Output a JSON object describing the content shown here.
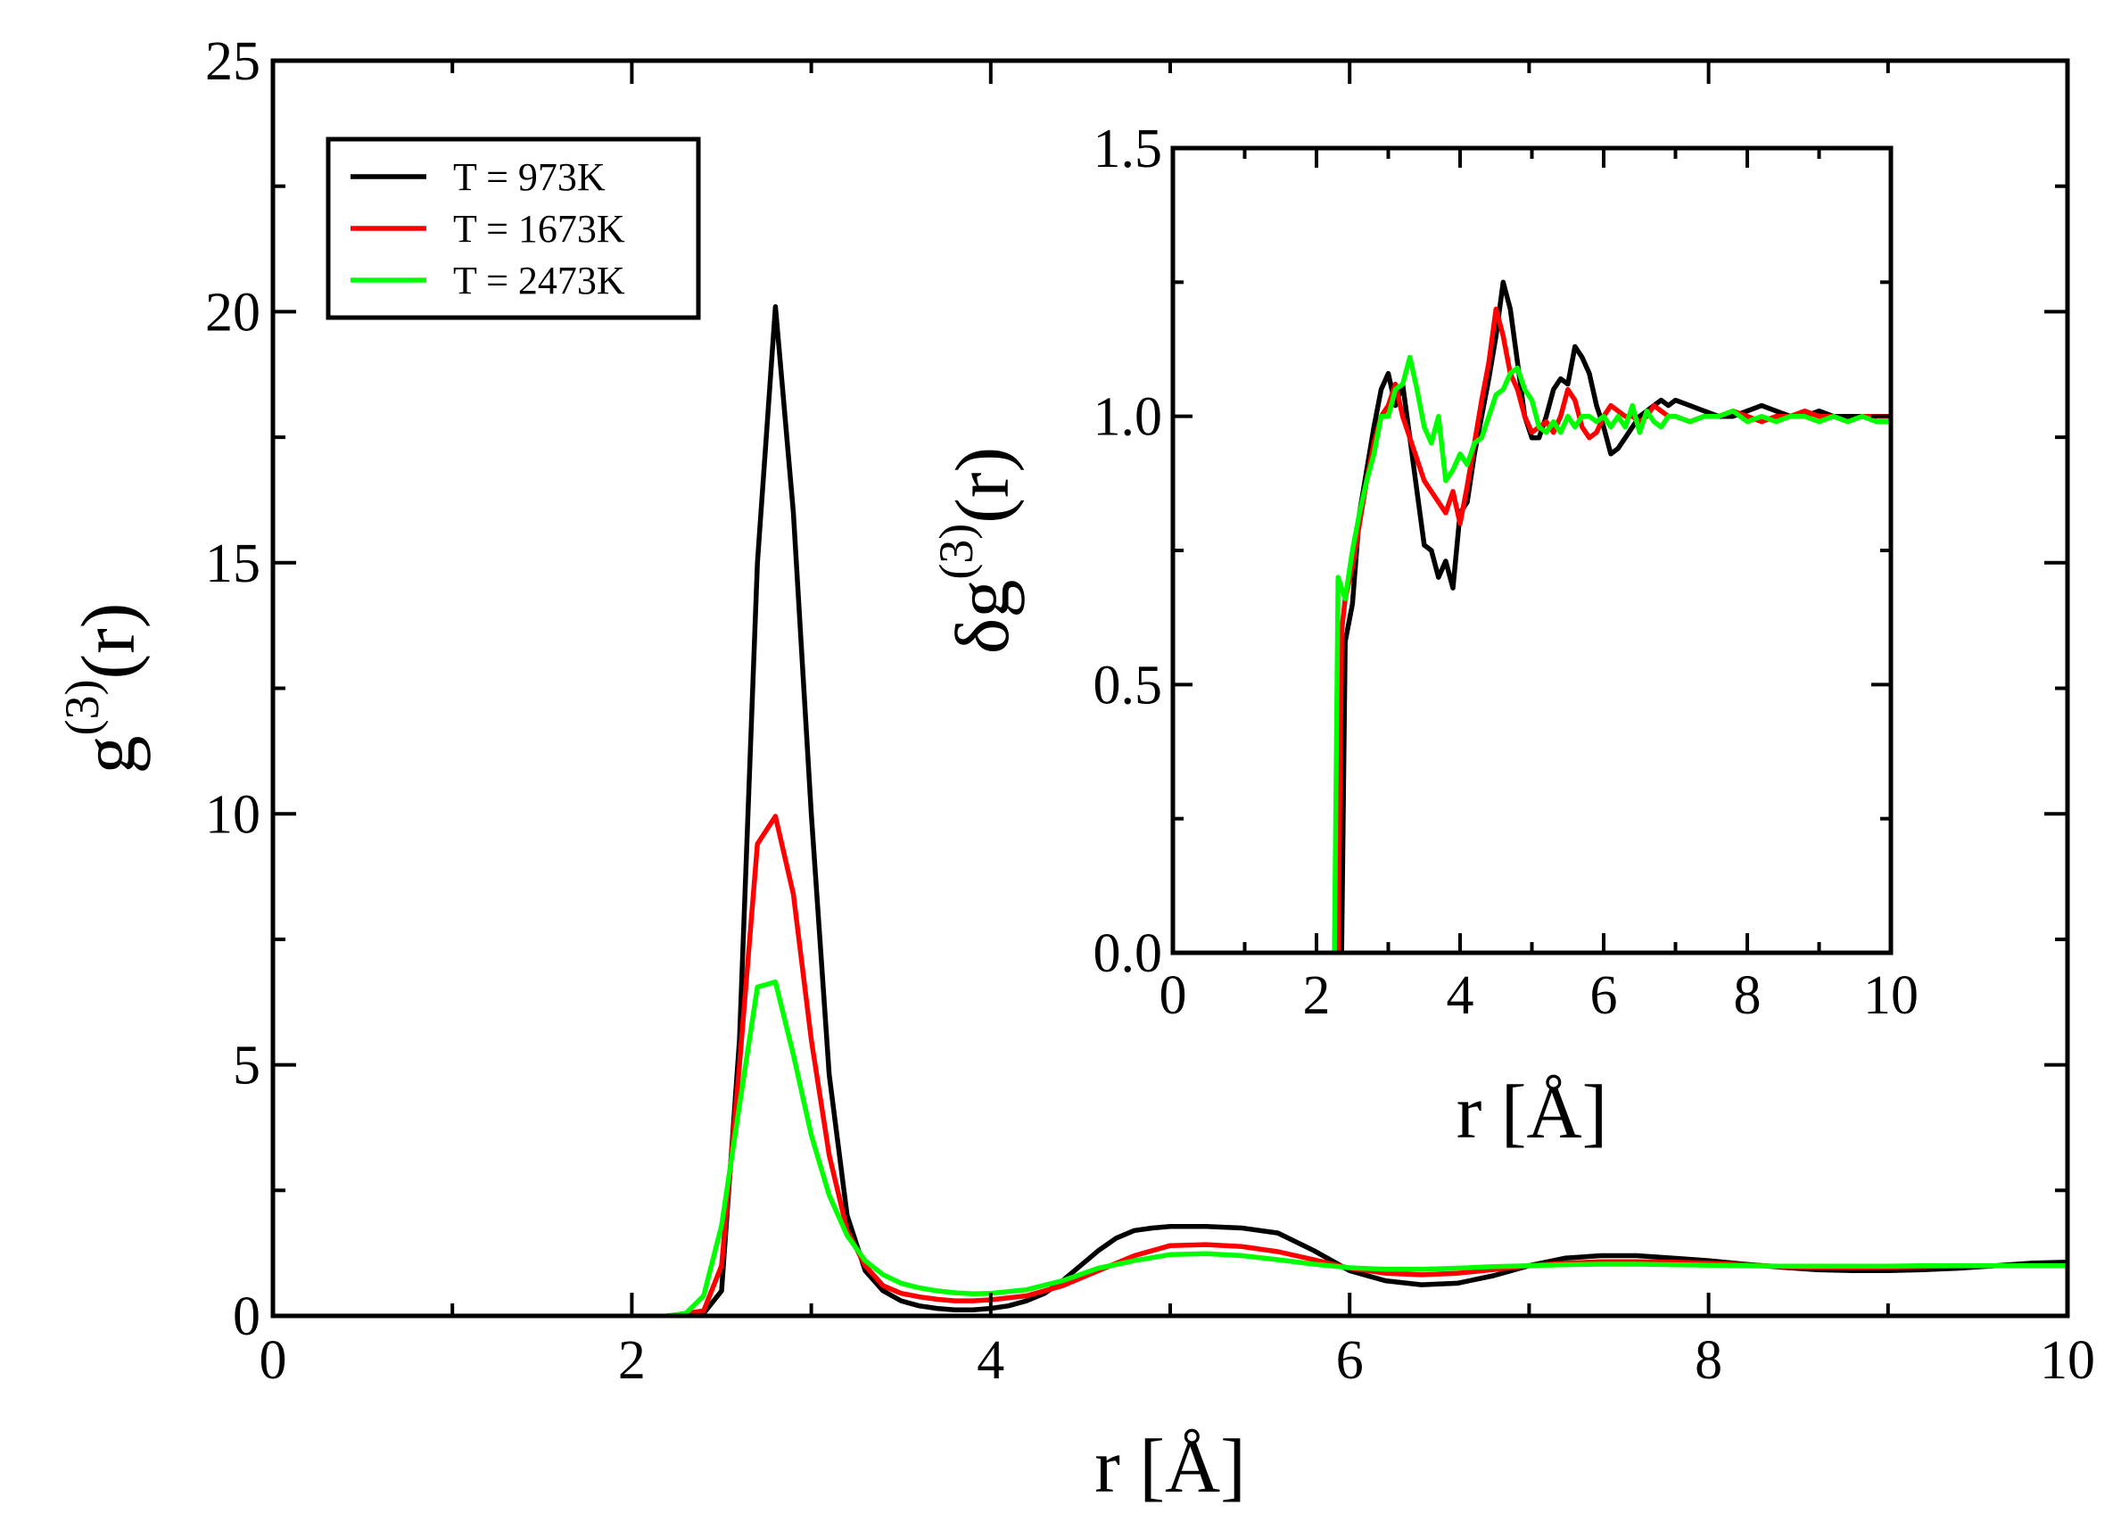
{
  "chart_data": [
    {
      "id": "main",
      "type": "line",
      "title": "",
      "xlabel": "r  [Å]",
      "ylabel_main": "g",
      "ylabel_sup": "(3)",
      "ylabel_tail": "(r)",
      "xlim": [
        0,
        10
      ],
      "ylim": [
        0,
        25
      ],
      "xticks": [
        0,
        2,
        4,
        6,
        8,
        10
      ],
      "yticks": [
        0,
        5,
        10,
        15,
        20,
        25
      ],
      "xtick_labels": [
        "0",
        "2",
        "4",
        "6",
        "8",
        "10"
      ],
      "ytick_labels": [
        "0",
        "5",
        "10",
        "15",
        "20",
        "25"
      ],
      "grid": false,
      "legend_position": "top-left",
      "series": [
        {
          "name": "T = 973K",
          "color": "#000000",
          "x": [
            2.2,
            2.4,
            2.5,
            2.6,
            2.7,
            2.8,
            2.9,
            3.0,
            3.1,
            3.2,
            3.3,
            3.4,
            3.5,
            3.6,
            3.7,
            3.8,
            3.9,
            4.0,
            4.1,
            4.2,
            4.3,
            4.4,
            4.5,
            4.6,
            4.7,
            4.8,
            4.9,
            5.0,
            5.2,
            5.4,
            5.6,
            5.8,
            6.0,
            6.2,
            6.4,
            6.6,
            6.8,
            7.0,
            7.2,
            7.4,
            7.6,
            7.8,
            8.0,
            8.2,
            8.4,
            8.6,
            8.8,
            9.0,
            9.2,
            9.4,
            9.6,
            9.8,
            10.0
          ],
          "y": [
            0.0,
            0.05,
            0.5,
            5.5,
            15.0,
            20.1,
            16.0,
            10.0,
            4.8,
            2.0,
            0.9,
            0.5,
            0.3,
            0.2,
            0.15,
            0.12,
            0.12,
            0.15,
            0.2,
            0.3,
            0.45,
            0.7,
            1.0,
            1.3,
            1.55,
            1.7,
            1.75,
            1.78,
            1.78,
            1.75,
            1.65,
            1.3,
            0.9,
            0.7,
            0.62,
            0.65,
            0.8,
            1.0,
            1.15,
            1.2,
            1.2,
            1.15,
            1.1,
            1.03,
            0.97,
            0.92,
            0.9,
            0.9,
            0.92,
            0.95,
            1.0,
            1.05,
            1.07
          ]
        },
        {
          "name": "T = 1673K",
          "color": "#ff0000",
          "x": [
            2.2,
            2.4,
            2.5,
            2.6,
            2.7,
            2.8,
            2.9,
            3.0,
            3.1,
            3.2,
            3.3,
            3.4,
            3.5,
            3.6,
            3.7,
            3.8,
            3.9,
            4.0,
            4.2,
            4.4,
            4.6,
            4.8,
            5.0,
            5.2,
            5.4,
            5.6,
            5.8,
            6.0,
            6.2,
            6.4,
            6.6,
            6.8,
            7.0,
            7.2,
            7.4,
            7.6,
            7.8,
            8.0,
            8.2,
            8.4,
            8.6,
            8.8,
            9.0,
            9.2,
            9.4,
            9.6,
            9.8,
            10.0
          ],
          "y": [
            0.0,
            0.1,
            1.0,
            5.0,
            9.4,
            9.95,
            8.4,
            5.5,
            3.2,
            1.7,
            1.0,
            0.6,
            0.45,
            0.38,
            0.33,
            0.3,
            0.3,
            0.32,
            0.4,
            0.6,
            0.9,
            1.2,
            1.4,
            1.42,
            1.38,
            1.28,
            1.12,
            0.95,
            0.85,
            0.82,
            0.85,
            0.92,
            1.0,
            1.05,
            1.08,
            1.08,
            1.07,
            1.05,
            1.02,
            0.98,
            0.97,
            0.96,
            0.97,
            0.98,
            1.0,
            1.0,
            1.0,
            1.0
          ]
        },
        {
          "name": "T = 2473K",
          "color": "#00ff00",
          "x": [
            2.2,
            2.3,
            2.4,
            2.5,
            2.6,
            2.7,
            2.8,
            2.9,
            3.0,
            3.1,
            3.2,
            3.3,
            3.4,
            3.5,
            3.6,
            3.7,
            3.8,
            3.9,
            4.0,
            4.2,
            4.4,
            4.6,
            4.8,
            5.0,
            5.2,
            5.4,
            5.6,
            5.8,
            6.0,
            6.2,
            6.4,
            6.6,
            6.8,
            7.0,
            7.2,
            7.4,
            7.6,
            7.8,
            8.0,
            8.2,
            8.4,
            8.6,
            8.8,
            9.0,
            9.2,
            9.4,
            9.6,
            9.8,
            10.0
          ],
          "y": [
            0.0,
            0.05,
            0.4,
            1.8,
            4.2,
            6.55,
            6.65,
            5.2,
            3.6,
            2.4,
            1.6,
            1.1,
            0.82,
            0.65,
            0.56,
            0.5,
            0.46,
            0.44,
            0.45,
            0.52,
            0.7,
            0.95,
            1.1,
            1.22,
            1.24,
            1.2,
            1.12,
            1.03,
            0.96,
            0.93,
            0.93,
            0.95,
            0.98,
            1.0,
            1.02,
            1.03,
            1.03,
            1.02,
            1.01,
            1.0,
            0.99,
            0.99,
            0.99,
            0.99,
            1.0,
            1.0,
            1.0,
            1.0,
            1.0
          ]
        }
      ]
    },
    {
      "id": "inset",
      "type": "line",
      "title": "",
      "xlabel": "r  [Å]",
      "ylabel_main": "δg",
      "ylabel_sup": "(3)",
      "ylabel_tail": "(r)",
      "xlim": [
        0,
        10
      ],
      "ylim": [
        0,
        1.5
      ],
      "xticks": [
        0,
        2,
        4,
        6,
        8,
        10
      ],
      "yticks": [
        0,
        0.5,
        1.0,
        1.5
      ],
      "xtick_labels": [
        "0",
        "2",
        "4",
        "6",
        "8",
        "10"
      ],
      "ytick_labels": [
        "0.0",
        "0.5",
        "1.0",
        "1.5"
      ],
      "grid": false,
      "series": [
        {
          "name": "T = 973K",
          "color": "#000000",
          "x": [
            2.35,
            2.4,
            2.5,
            2.6,
            2.7,
            2.8,
            2.9,
            3.0,
            3.1,
            3.2,
            3.3,
            3.4,
            3.5,
            3.6,
            3.7,
            3.8,
            3.9,
            4.0,
            4.1,
            4.2,
            4.3,
            4.4,
            4.5,
            4.6,
            4.7,
            4.8,
            4.9,
            5.0,
            5.1,
            5.2,
            5.3,
            5.4,
            5.5,
            5.6,
            5.7,
            5.8,
            5.9,
            6.0,
            6.1,
            6.2,
            6.3,
            6.4,
            6.5,
            6.6,
            6.7,
            6.8,
            6.9,
            7.0,
            7.2,
            7.4,
            7.6,
            7.8,
            8.0,
            8.2,
            8.4,
            8.6,
            8.8,
            9.0,
            9.2,
            9.4,
            9.6,
            9.8,
            10.0
          ],
          "y": [
            0.0,
            0.58,
            0.65,
            0.82,
            0.9,
            0.98,
            1.05,
            1.08,
            1.02,
            1.06,
            0.96,
            0.86,
            0.76,
            0.75,
            0.7,
            0.73,
            0.68,
            0.82,
            0.84,
            0.93,
            1.0,
            1.07,
            1.15,
            1.25,
            1.2,
            1.1,
            1.0,
            0.96,
            0.96,
            1.0,
            1.05,
            1.07,
            1.06,
            1.13,
            1.11,
            1.08,
            1.02,
            0.98,
            0.93,
            0.94,
            0.96,
            0.98,
            1.0,
            1.01,
            1.02,
            1.03,
            1.02,
            1.03,
            1.02,
            1.01,
            1.0,
            1.0,
            1.01,
            1.02,
            1.01,
            1.0,
            1.0,
            1.01,
            1.0,
            1.0,
            1.0,
            1.0,
            1.0
          ]
        },
        {
          "name": "T = 1673K",
          "color": "#ff0000",
          "x": [
            2.3,
            2.35,
            2.4,
            2.5,
            2.6,
            2.7,
            2.8,
            2.9,
            3.0,
            3.1,
            3.2,
            3.3,
            3.4,
            3.5,
            3.6,
            3.7,
            3.8,
            3.9,
            4.0,
            4.1,
            4.2,
            4.3,
            4.4,
            4.5,
            4.6,
            4.7,
            4.8,
            4.9,
            5.0,
            5.1,
            5.2,
            5.3,
            5.4,
            5.5,
            5.6,
            5.7,
            5.8,
            5.9,
            6.0,
            6.1,
            6.2,
            6.3,
            6.4,
            6.5,
            6.6,
            6.7,
            6.8,
            6.9,
            7.0,
            7.2,
            7.4,
            7.6,
            7.8,
            8.0,
            8.2,
            8.4,
            8.6,
            8.8,
            9.0,
            9.2,
            9.4,
            9.6,
            9.8,
            10.0
          ],
          "y": [
            0.0,
            0.6,
            0.66,
            0.72,
            0.8,
            0.88,
            0.95,
            1.0,
            1.02,
            1.06,
            1.0,
            0.96,
            0.92,
            0.88,
            0.86,
            0.84,
            0.82,
            0.86,
            0.8,
            0.87,
            0.95,
            1.03,
            1.1,
            1.2,
            1.15,
            1.08,
            1.05,
            1.0,
            0.97,
            0.98,
            0.99,
            0.97,
            1.0,
            1.05,
            1.03,
            0.98,
            0.96,
            0.97,
            1.0,
            1.02,
            1.01,
            1.0,
            1.0,
            0.99,
            1.0,
            1.02,
            1.01,
            1.0,
            1.0,
            0.99,
            1.0,
            1.0,
            1.01,
            1.0,
            0.99,
            1.0,
            1.0,
            1.01,
            1.0,
            1.0,
            0.99,
            1.0,
            1.0,
            1.0
          ]
        },
        {
          "name": "T = 2473K",
          "color": "#00ff00",
          "x": [
            2.25,
            2.3,
            2.4,
            2.5,
            2.6,
            2.7,
            2.8,
            2.9,
            3.0,
            3.1,
            3.2,
            3.3,
            3.4,
            3.5,
            3.6,
            3.7,
            3.8,
            3.9,
            4.0,
            4.1,
            4.2,
            4.3,
            4.4,
            4.5,
            4.6,
            4.7,
            4.8,
            4.9,
            5.0,
            5.1,
            5.2,
            5.3,
            5.4,
            5.5,
            5.6,
            5.7,
            5.8,
            5.9,
            6.0,
            6.1,
            6.2,
            6.3,
            6.4,
            6.5,
            6.6,
            6.7,
            6.8,
            6.9,
            7.0,
            7.2,
            7.4,
            7.6,
            7.8,
            8.0,
            8.2,
            8.4,
            8.6,
            8.8,
            9.0,
            9.2,
            9.4,
            9.6,
            9.8,
            10.0
          ],
          "y": [
            0.0,
            0.7,
            0.66,
            0.75,
            0.82,
            0.88,
            0.93,
            1.0,
            1.0,
            1.05,
            1.06,
            1.11,
            1.05,
            0.98,
            0.95,
            1.0,
            0.88,
            0.9,
            0.93,
            0.91,
            0.95,
            0.96,
            1.0,
            1.04,
            1.05,
            1.08,
            1.09,
            1.05,
            1.03,
            0.98,
            0.97,
            0.99,
            0.97,
            1.0,
            0.98,
            1.0,
            1.0,
            0.99,
            1.0,
            0.98,
            1.0,
            0.98,
            1.02,
            0.97,
            1.01,
            0.99,
            0.98,
            1.0,
            1.0,
            0.99,
            1.0,
            1.0,
            1.01,
            0.99,
            1.0,
            0.99,
            1.0,
            1.0,
            0.99,
            1.0,
            0.99,
            1.0,
            0.99,
            0.99
          ]
        }
      ]
    }
  ]
}
